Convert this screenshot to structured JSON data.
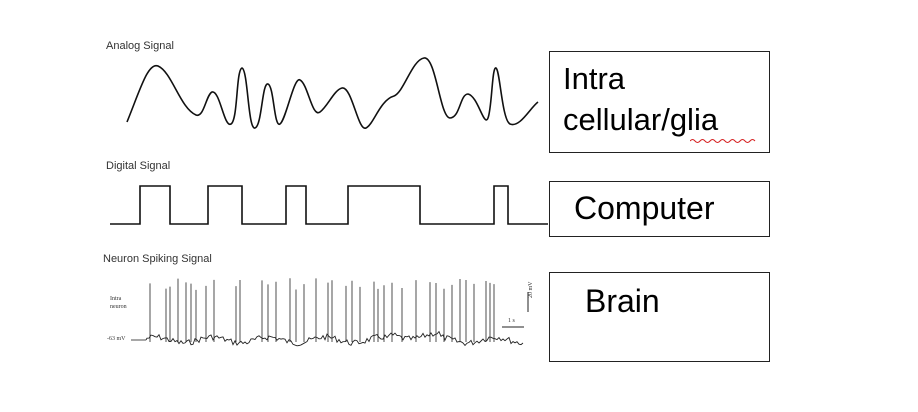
{
  "signals": {
    "analog_label": "Analog Signal",
    "digital_label": "Digital Signal",
    "spiking_label": "Neuron Spiking Signal"
  },
  "spike_panel": {
    "trace_label_line1": "Intra",
    "trace_label_line2": "neuron",
    "baseline_label": "-63 mV",
    "time_scale": "1 s",
    "voltage_scale": "20 mV"
  },
  "boxes": {
    "analog_line1": "Intra",
    "analog_line2": "cellular/glia",
    "digital": "Computer",
    "spiking": "Brain"
  },
  "colors": {
    "line": "#111111",
    "spellcheck_underline": "#d62020"
  }
}
